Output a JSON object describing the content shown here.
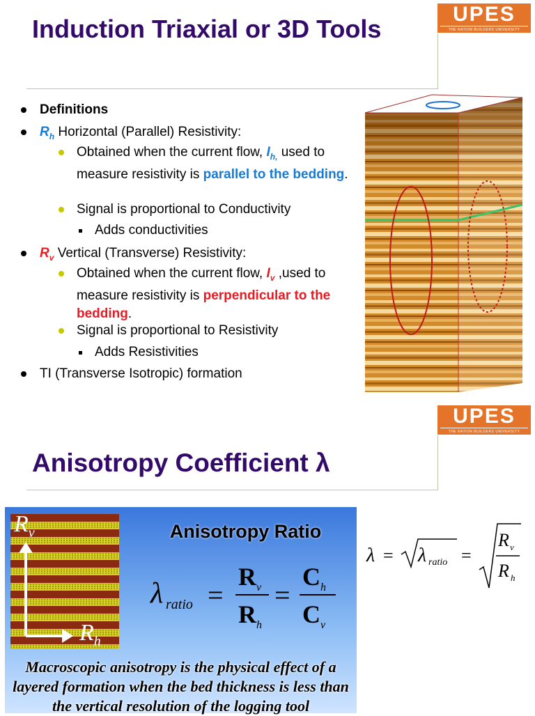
{
  "slide_1": {
    "logo": {
      "name": "UPES",
      "tagline": "THE NATION BUILDERS UNIVERSITY"
    },
    "title": "Induction Triaxial or 3D Tools",
    "items": [
      {
        "text": "Definitions"
      },
      {
        "symbol": "R",
        "subscript": "h",
        "text": "Horizontal (Parallel) Resistivity:"
      },
      {
        "text_1": "Obtained when the current flow,",
        "symbol": "I",
        "subscript": "h,",
        "text_2": "used to measure resistivity is",
        "emphasis": "parallel to the bedding",
        "text_3": "."
      },
      {
        "text": "Signal is proportional to Conductivity"
      },
      {
        "text": "Adds conductivities"
      },
      {
        "symbol": "R",
        "subscript": "v",
        "text": "Vertical (Transverse) Resistivity:"
      },
      {
        "text_1": "Obtained when the current flow,",
        "symbol": "I",
        "subscript": "v",
        "text_2": ",used to measure resistivity is",
        "emphasis": "perpendicular to the bedding",
        "text_3": "."
      },
      {
        "text": "Signal is proportional to Resistivity"
      },
      {
        "text": "Adds Resistivities"
      },
      {
        "text": "TI (Transverse Isotropic) formation"
      }
    ]
  },
  "slide_2": {
    "logo": {
      "name": "UPES",
      "tagline": "THE NATION BUILDERS UNIVERSITY"
    },
    "title": "Anisotropy Coefficient λ",
    "figure_labels": {
      "vertical": {
        "symbol": "R",
        "subscript": "v"
      },
      "horizontal": {
        "symbol": "R",
        "subscript": "h"
      }
    },
    "heading": "Anisotropy Ratio",
    "ratio_formula": {
      "lambda": "λ",
      "lambda_subscript": "ratio",
      "equals": "=",
      "numerator_1": {
        "symbol": "R",
        "subscript": "v"
      },
      "denominator_1": {
        "symbol": "R",
        "subscript": "h"
      },
      "numerator_2": {
        "symbol": "C",
        "subscript": "h"
      },
      "denominator_2": {
        "symbol": "C",
        "subscript": "v"
      }
    },
    "coefficient_formula": {
      "lambda": "λ",
      "equals": "=",
      "radicand": "λ",
      "radicand_subscript": "ratio",
      "numerator": {
        "symbol": "R",
        "subscript": "v"
      },
      "denominator": {
        "symbol": "R",
        "subscript": "h"
      }
    },
    "caption": "Macroscopic anisotropy is the physical effect of a layered formation when the bed thickness is less than the vertical resolution of the logging tool"
  }
}
